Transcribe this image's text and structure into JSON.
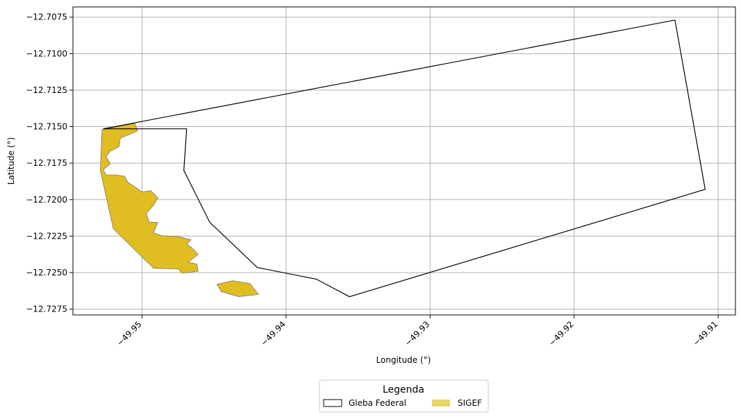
{
  "map": {
    "type": "polygon-map",
    "xlabel": "Longitude (°)",
    "ylabel": "Latitude (°)",
    "xlim": [
      -49.9548,
      -49.9088
    ],
    "ylim": [
      -12.7279,
      -12.7068
    ],
    "xticks": [
      {
        "value": -49.95,
        "label": "−49.95"
      },
      {
        "value": -49.94,
        "label": "−49.94"
      },
      {
        "value": -49.93,
        "label": "−49.93"
      },
      {
        "value": -49.92,
        "label": "−49.92"
      },
      {
        "value": -49.91,
        "label": "−49.91"
      }
    ],
    "yticks": [
      {
        "value": -12.7075,
        "label": "−12.7075"
      },
      {
        "value": -12.71,
        "label": "−12.7100"
      },
      {
        "value": -12.7125,
        "label": "−12.7125"
      },
      {
        "value": -12.715,
        "label": "−12.7150"
      },
      {
        "value": -12.7175,
        "label": "−12.7175"
      },
      {
        "value": -12.72,
        "label": "−12.7200"
      },
      {
        "value": -12.7225,
        "label": "−12.7225"
      },
      {
        "value": -12.725,
        "label": "−12.7250"
      },
      {
        "value": -12.7275,
        "label": "−12.7275"
      }
    ],
    "grid": true,
    "colors": {
      "gleba_stroke": "#000000",
      "sigef_fill": "#e0bd20",
      "sigef_stroke": "#5a5a78",
      "grid": "#b0b0b0"
    },
    "layers": [
      {
        "name": "Gleba Federal",
        "polygon": [
          [
            -49.9527,
            -12.71515
          ],
          [
            -49.913,
            -12.7077
          ],
          [
            -49.9109,
            -12.7193
          ],
          [
            -49.9356,
            -12.72665
          ],
          [
            -49.9379,
            -12.72545
          ],
          [
            -49.942,
            -12.72465
          ],
          [
            -49.9453,
            -12.72155
          ],
          [
            -49.9471,
            -12.718
          ],
          [
            -49.9469,
            -12.71515
          ]
        ]
      },
      {
        "name": "SIGEF",
        "polygons": [
          [
            [
              -49.95278,
              -12.7152
            ],
            [
              -49.9505,
              -12.71478
            ],
            [
              -49.9503,
              -12.7153
            ],
            [
              -49.9509,
              -12.71555
            ],
            [
              -49.9515,
              -12.71578
            ],
            [
              -49.9516,
              -12.71638
            ],
            [
              -49.9522,
              -12.71668
            ],
            [
              -49.9525,
              -12.71705
            ],
            [
              -49.9522,
              -12.71755
            ],
            [
              -49.9527,
              -12.71795
            ],
            [
              -49.9525,
              -12.7183
            ],
            [
              -49.9518,
              -12.7183
            ],
            [
              -49.9512,
              -12.7184
            ],
            [
              -49.951,
              -12.7188
            ],
            [
              -49.9504,
              -12.7192
            ],
            [
              -49.95,
              -12.71948
            ],
            [
              -49.9494,
              -12.71938
            ],
            [
              -49.9489,
              -12.71988
            ],
            [
              -49.9492,
              -12.72038
            ],
            [
              -49.9497,
              -12.72095
            ],
            [
              -49.9495,
              -12.72155
            ],
            [
              -49.9489,
              -12.72155
            ],
            [
              -49.949,
              -12.72178
            ],
            [
              -49.9492,
              -12.72228
            ],
            [
              -49.9486,
              -12.72248
            ],
            [
              -49.9476,
              -12.7225
            ],
            [
              -49.9466,
              -12.72275
            ],
            [
              -49.9469,
              -12.72305
            ],
            [
              -49.9466,
              -12.72325
            ],
            [
              -49.9461,
              -12.72375
            ],
            [
              -49.9468,
              -12.7243
            ],
            [
              -49.9462,
              -12.7244
            ],
            [
              -49.9461,
              -12.7249
            ],
            [
              -49.9472,
              -12.72505
            ],
            [
              -49.9475,
              -12.72475
            ],
            [
              -49.9492,
              -12.7247
            ],
            [
              -49.952,
              -12.722
            ],
            [
              -49.9529,
              -12.718
            ]
          ],
          [
            [
              -49.9445,
              -12.7263
            ],
            [
              -49.9448,
              -12.7258
            ],
            [
              -49.9437,
              -12.72555
            ],
            [
              -49.9425,
              -12.72575
            ],
            [
              -49.9419,
              -12.7265
            ],
            [
              -49.9433,
              -12.72665
            ]
          ]
        ]
      }
    ]
  },
  "legend": {
    "title": "Legenda",
    "items": [
      {
        "label": "Gleba Federal"
      },
      {
        "label": "SIGEF"
      }
    ]
  }
}
